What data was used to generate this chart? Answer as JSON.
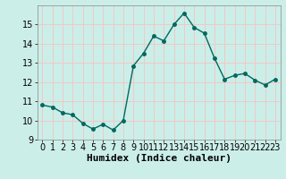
{
  "x": [
    0,
    1,
    2,
    3,
    4,
    5,
    6,
    7,
    8,
    9,
    10,
    11,
    12,
    13,
    14,
    15,
    16,
    17,
    18,
    19,
    20,
    21,
    22,
    23
  ],
  "y": [
    10.8,
    10.7,
    10.4,
    10.3,
    9.85,
    9.55,
    9.8,
    9.5,
    10.0,
    12.85,
    13.5,
    14.4,
    14.15,
    15.0,
    15.6,
    14.85,
    14.55,
    13.25,
    12.15,
    12.35,
    12.45,
    12.1,
    11.85,
    12.15
  ],
  "line_color": "#006860",
  "marker": "o",
  "marker_size": 2.5,
  "line_width": 1.0,
  "bg_color": "#cceee8",
  "grid_color": "#f0c8c8",
  "xlabel": "Humidex (Indice chaleur)",
  "xlabel_fontsize": 8,
  "xlabel_bold": true,
  "ylim": [
    9,
    16
  ],
  "xlim": [
    -0.5,
    23.5
  ],
  "yticks": [
    9,
    10,
    11,
    12,
    13,
    14,
    15
  ],
  "xticks": [
    0,
    1,
    2,
    3,
    4,
    5,
    6,
    7,
    8,
    9,
    10,
    11,
    12,
    13,
    14,
    15,
    16,
    17,
    18,
    19,
    20,
    21,
    22,
    23
  ],
  "tick_fontsize": 7,
  "grid_linewidth": 0.7,
  "spine_color": "#888888",
  "title_color": "#006860"
}
